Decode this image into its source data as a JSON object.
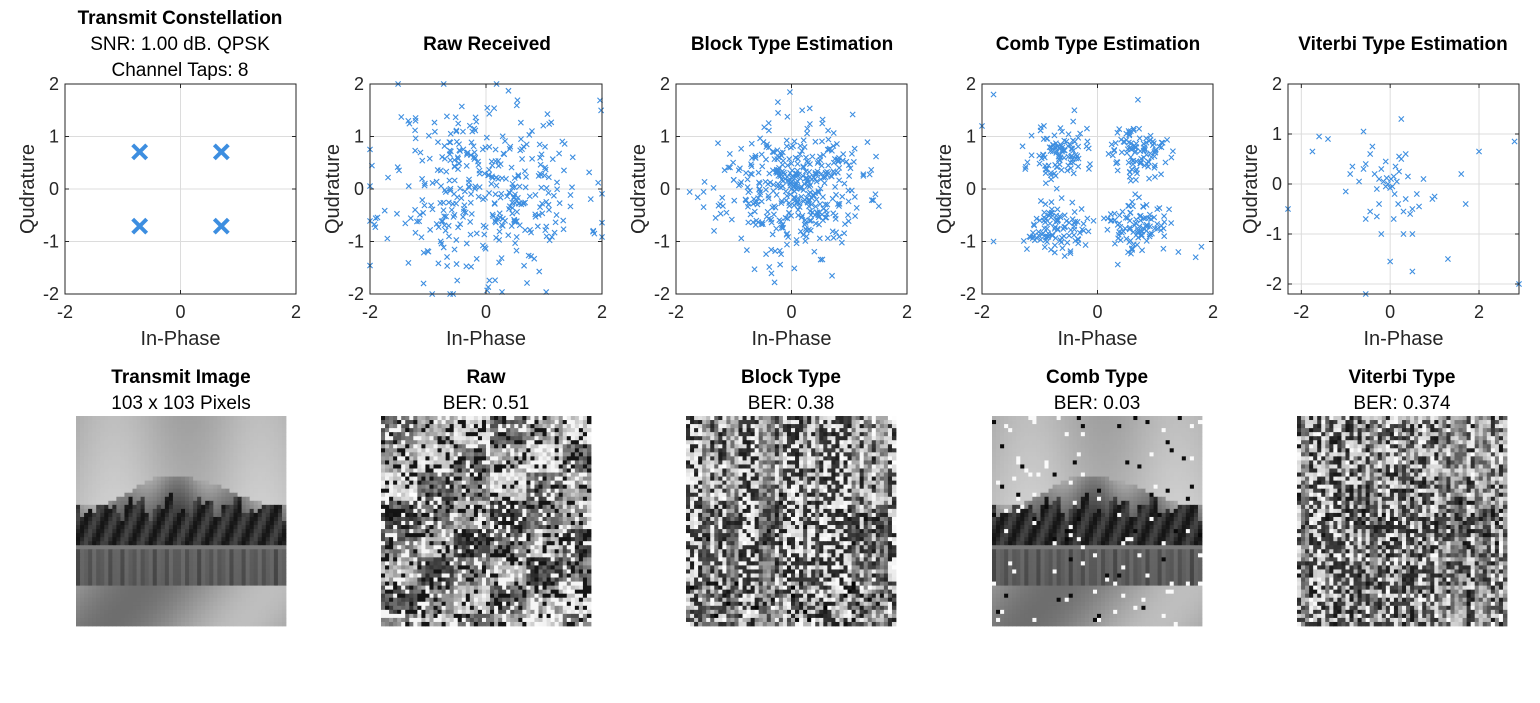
{
  "colors": {
    "marker": "#3d8ee0",
    "grid": "#dcdcdc",
    "axis": "#262626"
  },
  "chart_data": [
    {
      "type": "scatter",
      "title": "Transmit Constellation",
      "subtitle_lines": [
        "SNR: 1.00 dB. QPSK",
        "Channel Taps: 8"
      ],
      "xlabel": "In-Phase",
      "ylabel": "Qudrature",
      "xlim": [
        -2,
        2
      ],
      "ylim": [
        -2,
        2
      ],
      "xticks": [
        -2,
        0,
        2
      ],
      "yticks": [
        -2,
        -1,
        0,
        1,
        2
      ],
      "grid": true,
      "marker": "x",
      "marker_size": "large",
      "points": [
        [
          -0.707,
          0.707
        ],
        [
          0.707,
          0.707
        ],
        [
          -0.707,
          -0.707
        ],
        [
          0.707,
          -0.707
        ]
      ]
    },
    {
      "type": "scatter",
      "title": "Raw Received",
      "xlabel": "In-Phase",
      "ylabel": "Qudrature",
      "xlim": [
        -2,
        2
      ],
      "ylim": [
        -2,
        2
      ],
      "xticks": [
        -2,
        0,
        2
      ],
      "yticks": [
        -2,
        -1,
        0,
        1,
        2
      ],
      "grid": true,
      "marker": "x",
      "distribution": {
        "clusters": [
          [
            0,
            0
          ]
        ],
        "spread": 0.85,
        "count": 380,
        "seed": 11
      }
    },
    {
      "type": "scatter",
      "title": "Block Type Estimation",
      "xlabel": "In-Phase",
      "ylabel": "Qudrature",
      "xlim": [
        -2,
        2
      ],
      "ylim": [
        -2,
        2
      ],
      "xticks": [
        -2,
        0,
        2
      ],
      "yticks": [
        -2,
        -1,
        0,
        1,
        2
      ],
      "grid": true,
      "marker": "x",
      "distribution": {
        "clusters": [
          [
            0,
            0
          ]
        ],
        "spread": 0.6,
        "count": 420,
        "seed": 23
      }
    },
    {
      "type": "scatter",
      "title": "Comb Type Estimation",
      "xlabel": "In-Phase",
      "ylabel": "Qudrature",
      "xlim": [
        -2,
        2
      ],
      "ylim": [
        -2,
        2
      ],
      "xticks": [
        -2,
        0,
        2
      ],
      "yticks": [
        -2,
        -1,
        0,
        1,
        2
      ],
      "grid": true,
      "marker": "x",
      "distribution": {
        "clusters": [
          [
            -0.707,
            0.707
          ],
          [
            0.707,
            0.707
          ],
          [
            -0.707,
            -0.707
          ],
          [
            0.707,
            -0.707
          ]
        ],
        "spread": 0.25,
        "count": 400,
        "seed": 37,
        "outliers": [
          [
            -1.8,
            1.8
          ],
          [
            -2.0,
            1.2
          ],
          [
            1.4,
            -1.2
          ],
          [
            -1.8,
            -1.0
          ],
          [
            1.7,
            -1.3
          ],
          [
            1.8,
            -1.1
          ],
          [
            0.7,
            1.7
          ],
          [
            -0.4,
            1.5
          ]
        ]
      }
    },
    {
      "type": "scatter",
      "title": "Viterbi Type Estimation",
      "xlabel": "In-Phase",
      "ylabel": "Qudrature",
      "xlim": [
        -2.3,
        2.9
      ],
      "ylim": [
        -2.2,
        2
      ],
      "xticks": [
        -2,
        0,
        2
      ],
      "yticks": [
        -2,
        -1,
        0,
        1,
        2
      ],
      "grid": true,
      "marker": "x",
      "points": [
        [
          -2.3,
          -0.5
        ],
        [
          -1.6,
          0.95
        ],
        [
          -1.4,
          0.9
        ],
        [
          -1.75,
          0.65
        ],
        [
          -1.0,
          -0.15
        ],
        [
          -0.9,
          0.2
        ],
        [
          -0.85,
          0.35
        ],
        [
          -0.7,
          0.05
        ],
        [
          -0.6,
          1.05
        ],
        [
          -0.55,
          0.4
        ],
        [
          -0.45,
          0.6
        ],
        [
          -0.4,
          0.75
        ],
        [
          -0.35,
          0.2
        ],
        [
          -0.3,
          -0.1
        ],
        [
          -0.25,
          -0.4
        ],
        [
          -0.2,
          0.3
        ],
        [
          -0.15,
          0.05
        ],
        [
          -0.1,
          -0.05
        ],
        [
          -0.08,
          0.12
        ],
        [
          -0.05,
          0.0
        ],
        [
          0.0,
          -0.08
        ],
        [
          0.02,
          0.1
        ],
        [
          0.05,
          -0.05
        ],
        [
          0.08,
          0.15
        ],
        [
          0.1,
          -0.2
        ],
        [
          0.12,
          0.35
        ],
        [
          0.15,
          0.05
        ],
        [
          0.18,
          -0.4
        ],
        [
          0.2,
          0.25
        ],
        [
          0.25,
          0.5
        ],
        [
          0.3,
          -0.55
        ],
        [
          0.35,
          -0.3
        ],
        [
          0.4,
          0.15
        ],
        [
          0.45,
          -0.6
        ],
        [
          0.5,
          -0.5
        ],
        [
          0.6,
          -0.2
        ],
        [
          0.65,
          -0.45
        ],
        [
          0.75,
          0.1
        ],
        [
          0.95,
          -0.3
        ],
        [
          1.0,
          -0.25
        ],
        [
          0.2,
          0.55
        ],
        [
          0.25,
          1.3
        ],
        [
          -0.55,
          -0.7
        ],
        [
          -0.45,
          -0.55
        ],
        [
          -0.3,
          -0.65
        ],
        [
          -0.2,
          -1.0
        ],
        [
          0.0,
          -1.55
        ],
        [
          0.3,
          -1.0
        ],
        [
          0.5,
          -1.0
        ],
        [
          0.5,
          -1.75
        ],
        [
          1.3,
          -1.5
        ],
        [
          1.6,
          0.2
        ],
        [
          1.7,
          -0.4
        ],
        [
          2.0,
          0.65
        ],
        [
          2.8,
          0.85
        ],
        [
          2.9,
          -2.0
        ],
        [
          -0.55,
          -2.2
        ],
        [
          -0.1,
          0.45
        ],
        [
          0.08,
          -0.7
        ],
        [
          -0.25,
          0.1
        ],
        [
          0.35,
          0.6
        ],
        [
          -0.6,
          0.3
        ]
      ]
    }
  ],
  "images": [
    {
      "title": "Transmit Image",
      "subtitle": "103 x 103 Pixels",
      "quality": "clean",
      "seed": 1
    },
    {
      "title": "Raw",
      "subtitle": "BER: 0.51",
      "quality": "raw",
      "seed": 2
    },
    {
      "title": "Block Type",
      "subtitle": "BER: 0.38",
      "quality": "block",
      "seed": 3
    },
    {
      "title": "Comb Type",
      "subtitle": "BER: 0.03",
      "quality": "comb",
      "seed": 4
    },
    {
      "title": "Viterbi Type",
      "subtitle": "BER: 0.374",
      "quality": "viterbi",
      "seed": 5
    }
  ]
}
